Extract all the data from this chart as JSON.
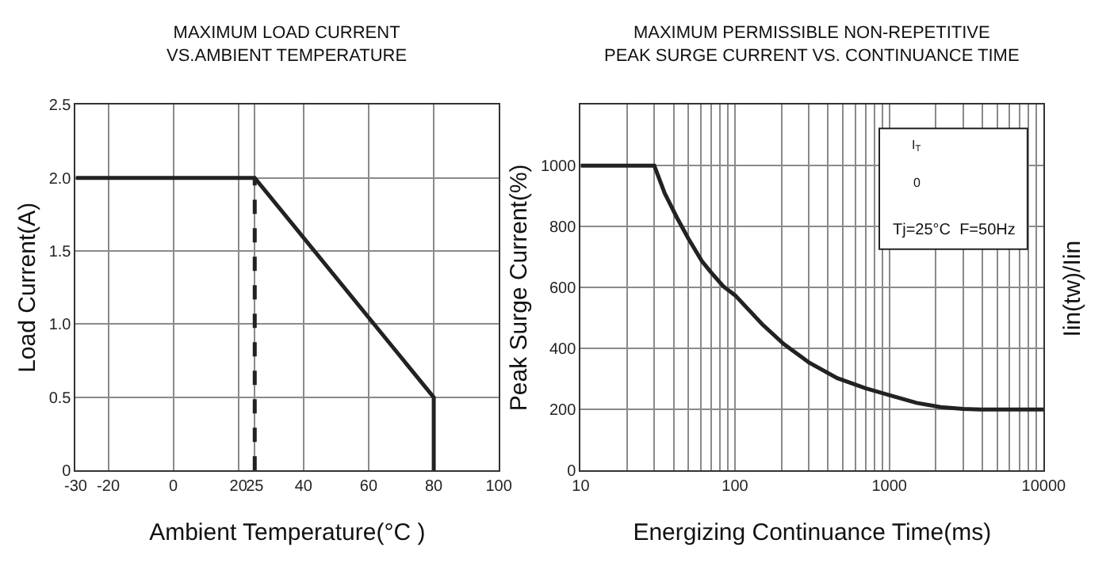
{
  "chart_data": [
    {
      "type": "line",
      "title": "MAXIMUM LOAD CURRENT\nVS.AMBIENT TEMPERATURE",
      "xlabel": "Ambient Temperature(°C )",
      "ylabel": "Load Current(A)",
      "series": [
        {
          "color": "#222222",
          "x": [
            -30,
            25,
            80,
            80
          ],
          "values": [
            2.0,
            2.0,
            0.5,
            0
          ]
        },
        {
          "color": "#222222",
          "x": [
            25,
            25
          ],
          "values": [
            0,
            2.0
          ],
          "line_style": "dashed"
        }
      ],
      "xlim": [
        -30,
        100
      ],
      "xticks": [
        -30,
        -20,
        0,
        20,
        25,
        40,
        60,
        80,
        100
      ],
      "ylim": [
        0,
        2.5
      ],
      "yticks": [
        0,
        0.5,
        {
          "value": 1,
          "label": "1.0"
        },
        1.5,
        {
          "value": 2,
          "label": "2.0"
        },
        2.5
      ],
      "grid": true,
      "marker": "none",
      "line_style": "solid"
    },
    {
      "type": "line",
      "title": "MAXIMUM PERMISSIBLE NON-REPETITIVE\nPEAK SURGE CURRENT VS. CONTINUANCE TIME",
      "xlabel": "Energizing Continuance Time(ms)",
      "ylabel": "Peak Surge Current(%)",
      "y2label": "Iin(tw)/Iin",
      "annotations": [
        "I$_{T}$",
        "0",
        "Tj=25°C  F=50Hz"
      ],
      "series": [
        {
          "color": "#222222",
          "x": [
            10,
            20,
            30,
            35,
            42,
            50,
            61,
            70,
            84,
            100,
            150,
            207,
            300,
            460,
            700,
            1000,
            1500,
            2150,
            3000,
            3900,
            10000
          ],
          "values": [
            1000,
            1000,
            1000,
            910,
            830,
            760,
            687,
            650,
            604,
            575,
            480,
            415,
            355,
            303,
            270,
            247,
            222,
            208,
            202,
            200,
            200
          ]
        }
      ],
      "log": "x",
      "xlim": [
        10,
        10000
      ],
      "xticks": [
        10,
        {
          "value": 20,
          "label": null
        },
        {
          "value": 30,
          "label": null
        },
        {
          "value": 40,
          "label": null
        },
        {
          "value": 50,
          "label": null
        },
        {
          "value": 60,
          "label": null
        },
        {
          "value": 70,
          "label": null
        },
        {
          "value": 80,
          "label": null
        },
        {
          "value": 90,
          "label": null
        },
        100,
        {
          "value": 200,
          "label": null
        },
        {
          "value": 300,
          "label": null
        },
        {
          "value": 400,
          "label": null
        },
        {
          "value": 500,
          "label": null
        },
        {
          "value": 600,
          "label": null
        },
        {
          "value": 700,
          "label": null
        },
        {
          "value": 800,
          "label": null
        },
        {
          "value": 900,
          "label": null
        },
        1000,
        {
          "value": 2000,
          "label": null
        },
        {
          "value": 3000,
          "label": null
        },
        {
          "value": 4000,
          "label": null
        },
        {
          "value": 5000,
          "label": null
        },
        {
          "value": 6000,
          "label": null
        },
        {
          "value": 7000,
          "label": null
        },
        {
          "value": 8000,
          "label": null
        },
        {
          "value": 9000,
          "label": null
        },
        10000
      ],
      "ylim": [
        0,
        1200
      ],
      "yticks": [
        0,
        200,
        400,
        600,
        800,
        1000
      ],
      "grid": true,
      "marker": "none",
      "line_style": "solid"
    }
  ]
}
